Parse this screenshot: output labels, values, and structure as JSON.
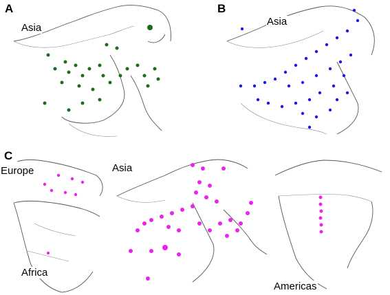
{
  "panels": {
    "a": {
      "letter": "A",
      "region": "Asia",
      "dot_color": "#1e6b1e"
    },
    "b": {
      "letter": "B",
      "region": "Asia",
      "dot_color": "#1a1ae6"
    },
    "c": {
      "letter": "C",
      "dot_color": "#ee22ee",
      "regions": {
        "europe": "Europe",
        "africa": "Africa",
        "asia": "Asia",
        "americas": "Americas"
      }
    }
  }
}
